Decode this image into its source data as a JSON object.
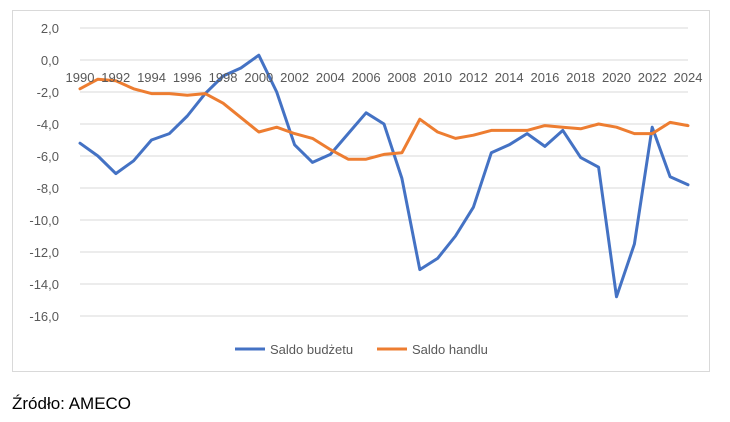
{
  "chart_data": {
    "type": "line",
    "title": "",
    "xlabel": "",
    "ylabel": "",
    "ylim": [
      -16,
      2
    ],
    "yticks": [
      "2,0",
      "0,0",
      "-2,0",
      "-4,0",
      "-6,0",
      "-8,0",
      "-10,0",
      "-12,0",
      "-14,0",
      "-16,0"
    ],
    "ytick_values": [
      2,
      0,
      -2,
      -4,
      -6,
      -8,
      -10,
      -12,
      -14,
      -16
    ],
    "xticks": [
      "1990",
      "1992",
      "1994",
      "1996",
      "1998",
      "2000",
      "2002",
      "2004",
      "2006",
      "2008",
      "2010",
      "2012",
      "2014",
      "2016",
      "2018",
      "2020",
      "2022",
      "2024"
    ],
    "x": [
      1990,
      1991,
      1992,
      1993,
      1994,
      1995,
      1996,
      1997,
      1998,
      1999,
      2000,
      2001,
      2002,
      2003,
      2004,
      2005,
      2006,
      2007,
      2008,
      2009,
      2010,
      2011,
      2012,
      2013,
      2014,
      2015,
      2016,
      2017,
      2018,
      2019,
      2020,
      2021,
      2022,
      2023,
      2024
    ],
    "grid": true,
    "legend_position": "bottom",
    "series": [
      {
        "name": "Saldo budżetu",
        "color": "#4472c4",
        "values": [
          -5.2,
          -6.0,
          -7.1,
          -6.3,
          -5.0,
          -4.6,
          -3.5,
          -2.1,
          -1.0,
          -0.5,
          0.3,
          -2.0,
          -5.3,
          -6.4,
          -5.9,
          -4.6,
          -3.3,
          -4.0,
          -7.4,
          -13.1,
          -12.4,
          -11.0,
          -9.2,
          -5.8,
          -5.3,
          -4.6,
          -5.4,
          -4.4,
          -6.1,
          -6.7,
          -14.8,
          -11.5,
          -4.2,
          -7.3,
          -7.8
        ]
      },
      {
        "name": "Saldo handlu",
        "color": "#ed7d31",
        "values": [
          -1.8,
          -1.2,
          -1.3,
          -1.8,
          -2.1,
          -2.1,
          -2.2,
          -2.1,
          -2.7,
          -3.6,
          -4.5,
          -4.2,
          -4.6,
          -4.9,
          -5.6,
          -6.2,
          -6.2,
          -5.9,
          -5.8,
          -3.7,
          -4.5,
          -4.9,
          -4.7,
          -4.4,
          -4.4,
          -4.4,
          -4.1,
          -4.2,
          -4.3,
          -4.0,
          -4.2,
          -4.6,
          -4.6,
          -3.9,
          -4.1
        ]
      }
    ]
  },
  "source_note": "Źródło: AMECO"
}
